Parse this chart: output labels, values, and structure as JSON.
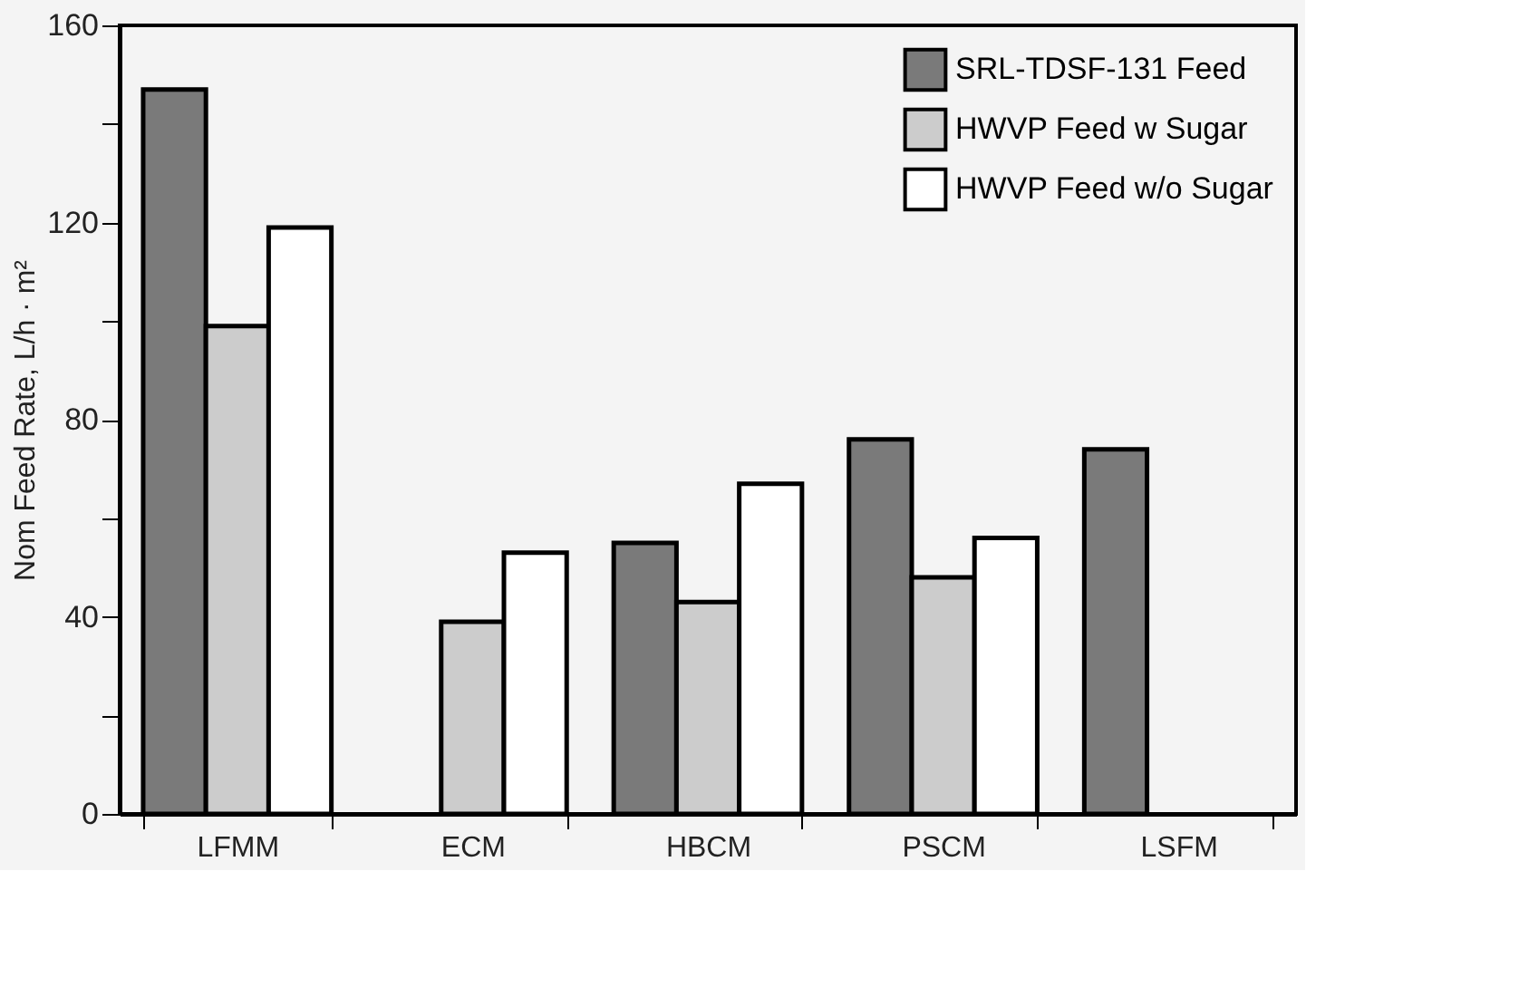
{
  "chart_data": {
    "type": "bar",
    "ylabel": "Nom Feed Rate, L/h · m²",
    "categories": [
      "LFMM",
      "ECM",
      "HBCM",
      "PSCM",
      "LSFM"
    ],
    "series": [
      {
        "name": "SRL-TDSF-131 Feed",
        "color": "#7a7a7a",
        "values": [
          147,
          null,
          55,
          76,
          74
        ]
      },
      {
        "name": "HWVP Feed w Sugar",
        "color": "#cccccc",
        "values": [
          99,
          39,
          43,
          48,
          null
        ]
      },
      {
        "name": "HWVP Feed w/o Sugar",
        "color": "#ffffff",
        "values": [
          119,
          53,
          67,
          56,
          null
        ]
      }
    ],
    "ylim": [
      0,
      160
    ],
    "yticks": [
      0,
      {
        "value": 20,
        "label": null
      },
      40,
      {
        "value": 60,
        "label": null
      },
      80,
      {
        "value": 100,
        "label": null
      },
      120,
      {
        "value": 140,
        "label": null
      },
      160
    ],
    "grid": false,
    "legend": "top right"
  }
}
